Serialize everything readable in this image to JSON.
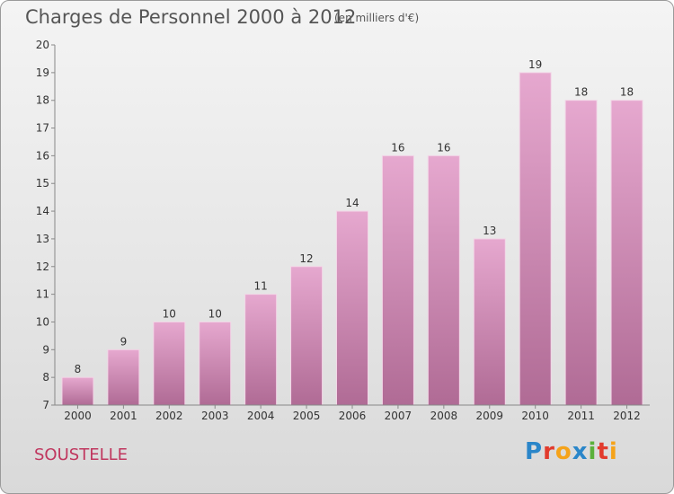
{
  "header": {
    "title": "Charges de Personnel 2000 à 2012",
    "subtitle": "(en milliers d'€)"
  },
  "footer": {
    "town": "SOUSTELLE",
    "logo_text": "Proxiti"
  },
  "colors": {
    "bar_top": "#e6a8cf",
    "bar_bottom": "#b06b95",
    "town": "#c0365e"
  },
  "chart_data": {
    "type": "bar",
    "title": "Charges de Personnel 2000 à 2012",
    "subtitle": "(en milliers d'€)",
    "categories": [
      "2000",
      "2001",
      "2002",
      "2003",
      "2004",
      "2005",
      "2006",
      "2007",
      "2008",
      "2009",
      "2010",
      "2011",
      "2012"
    ],
    "values": [
      8,
      9,
      10,
      10,
      11,
      12,
      14,
      16,
      16,
      13,
      19,
      18,
      18
    ],
    "ylim": [
      7,
      20
    ],
    "yticks": [
      7,
      8,
      9,
      10,
      11,
      12,
      13,
      14,
      15,
      16,
      17,
      18,
      19,
      20
    ],
    "grid": false,
    "legend": "none"
  }
}
